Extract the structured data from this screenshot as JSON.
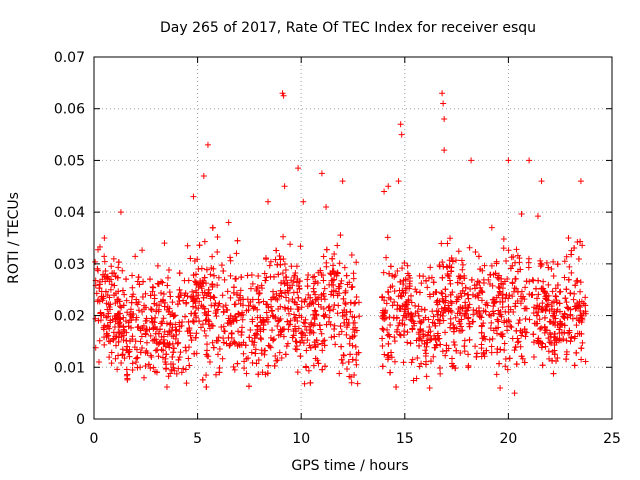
{
  "chart_data": {
    "type": "scatter",
    "title": "Day 265 of 2017, Rate Of TEC Index for receiver esqu",
    "xlabel": "GPS time / hours",
    "ylabel": "ROTI / TECUs",
    "xlim": [
      0,
      25
    ],
    "ylim": [
      0,
      0.07
    ],
    "x_ticks": [
      "0",
      "5",
      "10",
      "15",
      "20",
      "25"
    ],
    "y_ticks": [
      "0",
      "0.01",
      "0.02",
      "0.03",
      "0.04",
      "0.05",
      "0.06",
      "0.07"
    ],
    "grid": true,
    "marker": "plus",
    "color": "#ff0000",
    "gap_hours": [
      12.8,
      13.9
    ],
    "series": [
      {
        "typical_value": 0.018,
        "band": [
          0.006,
          0.034
        ],
        "peaks": [
          {
            "x": 9.1,
            "y": 0.063
          },
          {
            "x": 9.15,
            "y": 0.0625
          },
          {
            "x": 16.8,
            "y": 0.063
          },
          {
            "x": 16.85,
            "y": 0.061
          },
          {
            "x": 16.9,
            "y": 0.058
          },
          {
            "x": 14.8,
            "y": 0.057
          },
          {
            "x": 14.85,
            "y": 0.055
          },
          {
            "x": 5.5,
            "y": 0.053
          },
          {
            "x": 16.9,
            "y": 0.052
          },
          {
            "x": 20.0,
            "y": 0.05
          },
          {
            "x": 21.0,
            "y": 0.05
          },
          {
            "x": 18.2,
            "y": 0.05
          },
          {
            "x": 9.85,
            "y": 0.0485
          },
          {
            "x": 11.0,
            "y": 0.0475
          },
          {
            "x": 5.3,
            "y": 0.047
          },
          {
            "x": 14.7,
            "y": 0.046
          },
          {
            "x": 12.0,
            "y": 0.046
          },
          {
            "x": 23.5,
            "y": 0.046
          },
          {
            "x": 21.6,
            "y": 0.046
          },
          {
            "x": 14.2,
            "y": 0.045
          },
          {
            "x": 9.2,
            "y": 0.045
          },
          {
            "x": 14.0,
            "y": 0.044
          },
          {
            "x": 4.8,
            "y": 0.043
          },
          {
            "x": 10.1,
            "y": 0.042
          },
          {
            "x": 8.4,
            "y": 0.042
          },
          {
            "x": 11.2,
            "y": 0.041
          },
          {
            "x": 1.3,
            "y": 0.04
          },
          {
            "x": 6.5,
            "y": 0.038
          },
          {
            "x": 19.2,
            "y": 0.037
          },
          {
            "x": 22.9,
            "y": 0.035
          },
          {
            "x": 0.5,
            "y": 0.035
          },
          {
            "x": 3.4,
            "y": 0.034
          },
          {
            "x": 14.3,
            "y": 0.009
          },
          {
            "x": 16.2,
            "y": 0.006
          },
          {
            "x": 19.6,
            "y": 0.006
          },
          {
            "x": 20.3,
            "y": 0.005
          }
        ]
      }
    ]
  }
}
